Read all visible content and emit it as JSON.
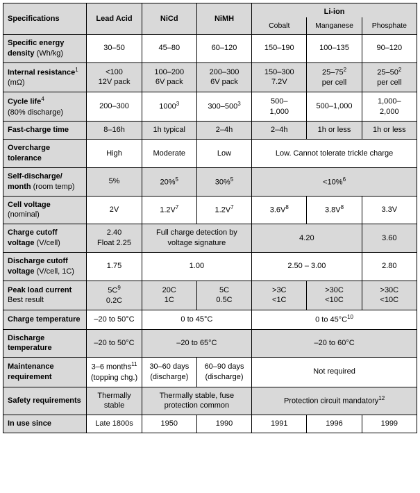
{
  "colors": {
    "shade": "#d9d9d9",
    "border": "#000000",
    "bg": "#ffffff"
  },
  "header": {
    "spec": "Specifications",
    "lead": "Lead Acid",
    "nicd": "NiCd",
    "nimh": "NiMH",
    "liion": "Li-ion",
    "cobalt": "Cobalt",
    "manganese": "Manganese",
    "phosphate": "Phosphate"
  },
  "rows": {
    "energy": {
      "label": "Specific energy density",
      "sub": " (Wh/kg)",
      "lead": "30–50",
      "nicd": "45–80",
      "nimh": "60–120",
      "co": "150–190",
      "mn": "100–135",
      "ph": "90–120"
    },
    "ir": {
      "label": "Internal resistance",
      "sup": "1",
      "sub": "(mΩ)",
      "lead": "<100\n12V pack",
      "nicd": "100–200\n6V pack",
      "nimh": "200–300\n6V pack",
      "co": "150–300\n7.2V",
      "mn_html": "25–75<sup>2</sup><br>per cell",
      "ph_html": "25–50<sup>2</sup><br>per cell"
    },
    "cycle": {
      "label": "Cycle life",
      "sup": "4",
      "sub": "(80% discharge)",
      "lead": "200–300",
      "nicd_html": "1000<sup>3</sup>",
      "nimh_html": "300–500<sup>3</sup>",
      "co": "500–\n1,000",
      "mn": "500–1,000",
      "ph": "1,000–\n2,000"
    },
    "fast": {
      "label": "Fast-charge time",
      "lead": "8–16h",
      "nicd": "1h typical",
      "nimh": "2–4h",
      "co": "2–4h",
      "mn": "1h or less",
      "ph": "1h or less"
    },
    "over": {
      "label": "Overcharge tolerance",
      "lead": "High",
      "nicd": "Moderate",
      "nimh": "Low",
      "liion": "Low. Cannot tolerate trickle charge"
    },
    "self": {
      "label": "Self-discharge/ month",
      "sub": " (room temp)",
      "lead": "5%",
      "nicd_html": "20%<sup>5</sup>",
      "nimh_html": "30%<sup>5</sup>",
      "liion_html": "<10%<sup>6</sup>"
    },
    "cellv": {
      "label": "Cell voltage",
      "sub": "(nominal)",
      "lead": "2V",
      "nicd_html": "1.2V<sup>7</sup>",
      "nimh_html": "1.2V<sup>7</sup>",
      "co_html": "3.6V<sup>8</sup>",
      "mn_html": "3.8V<sup>8</sup>",
      "ph": "3.3V"
    },
    "chgcut": {
      "label": "Charge cutoff voltage",
      "sub": " (V/cell)",
      "lead": "2.40\nFloat 2.25",
      "nicd_nimh": "Full charge detection by voltage signature",
      "co_mn": "4.20",
      "ph": "3.60"
    },
    "dischcut": {
      "label": "Discharge cutoff voltage",
      "sub": " (V/cell, 1C)",
      "lead": "1.75",
      "nicd_nimh": "1.00",
      "co_mn": "2.50 – 3.00",
      "ph": "2.80"
    },
    "peak": {
      "label": "Peak load current",
      "sub": "Best result",
      "lead_html": "5C<sup>9</sup><br>0.2C",
      "nicd": "20C\n1C",
      "nimh": "5C\n0.5C",
      "co": ">3C\n<1C",
      "mn": ">30C\n<10C",
      "ph": ">30C\n<10C"
    },
    "chgtemp": {
      "label": "Charge temperature",
      "lead": "–20 to 50°C",
      "nicd_nimh": "0 to 45°C",
      "liion_html": "0 to 45°C<sup>10</sup>"
    },
    "dischtemp": {
      "label": "Discharge temperature",
      "lead": "–20 to 50°C",
      "nicd_nimh": "–20 to 65°C",
      "liion": "–20 to 60°C"
    },
    "maint": {
      "label": "Maintenance requirement",
      "lead_html": "3–6 months<sup>11</sup><br>(topping chg.)",
      "nicd": "30–60 days\n(discharge)",
      "nimh": "60–90 days\n(discharge)",
      "liion": "Not required"
    },
    "safety": {
      "label": "Safety requirements",
      "lead": "Thermally stable",
      "nicd_nimh": "Thermally stable, fuse protection common",
      "liion_html": "Protection circuit mandatory<sup>12</sup>"
    },
    "inuse": {
      "label": "In use since",
      "lead": "Late 1800s",
      "nicd": "1950",
      "nimh": "1990",
      "co": "1991",
      "mn": "1996",
      "ph": "1999"
    }
  }
}
